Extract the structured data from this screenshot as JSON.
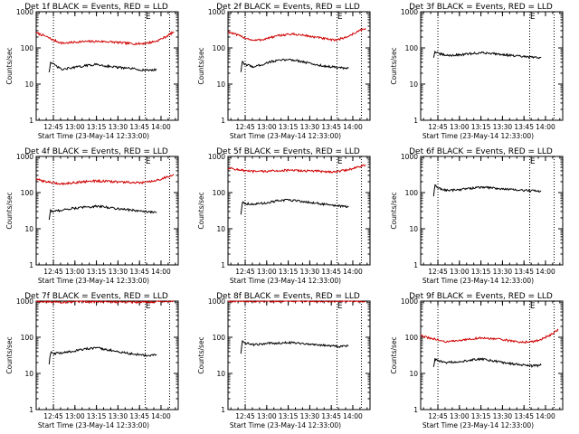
{
  "figure": {
    "background": "#ffffff",
    "colors": {
      "events": "#000000",
      "lld": "#d00000",
      "axes": "#000000"
    }
  },
  "chart_data": [
    {
      "type": "line",
      "title": "Det 1f BLACK = Events, RED = LLD",
      "xlabel": "Start Time (23-May-14 12:33:00)",
      "ylabel": "Counts/sec",
      "y_scale": "log",
      "ylim": [
        1,
        1000
      ],
      "y_ticks": [
        "1",
        "10",
        "100",
        "1000"
      ],
      "xlim": [
        "12:33",
        "14:12"
      ],
      "x_ticks": [
        "12:45",
        "13:00",
        "13:15",
        "13:30",
        "13:45",
        "14:00"
      ],
      "vlines": [
        "12:45",
        "13:49",
        "14:06"
      ],
      "markers": [
        {
          "text": "E",
          "x": "13:51"
        }
      ],
      "series": [
        {
          "color": "#d00000",
          "x": [
            "12:33",
            "12:39",
            "12:45",
            "12:51",
            "12:57",
            "13:03",
            "13:09",
            "13:15",
            "13:21",
            "13:27",
            "13:33",
            "13:39",
            "13:45",
            "13:51",
            "13:57",
            "14:03",
            "14:09"
          ],
          "y": [
            260,
            215,
            165,
            135,
            140,
            148,
            150,
            152,
            150,
            145,
            138,
            132,
            130,
            138,
            155,
            200,
            280
          ]
        },
        {
          "color": "#000000",
          "x": [
            "12:42",
            "12:43",
            "12:45",
            "12:51",
            "12:57",
            "13:03",
            "13:09",
            "13:15",
            "13:21",
            "13:27",
            "13:33",
            "13:39",
            "13:45",
            "13:51",
            "13:57"
          ],
          "y": [
            22,
            40,
            35,
            25,
            28,
            30,
            33,
            35,
            32,
            30,
            28,
            27,
            25,
            24,
            25
          ]
        }
      ]
    },
    {
      "type": "line",
      "title": "Det 2f BLACK = Events, RED = LLD",
      "xlabel": "Start Time (23-May-14 12:33:00)",
      "ylabel": "Counts/sec",
      "y_scale": "log",
      "ylim": [
        1,
        1000
      ],
      "y_ticks": [
        "1",
        "10",
        "100",
        "1000"
      ],
      "xlim": [
        "12:33",
        "14:12"
      ],
      "x_ticks": [
        "12:45",
        "13:00",
        "13:15",
        "13:30",
        "13:45",
        "14:00"
      ],
      "vlines": [
        "12:45",
        "13:49",
        "14:06"
      ],
      "markers": [
        {
          "text": "E",
          "x": "13:51"
        }
      ],
      "series": [
        {
          "color": "#d00000",
          "x": [
            "12:33",
            "12:39",
            "12:45",
            "12:51",
            "12:57",
            "13:03",
            "13:09",
            "13:15",
            "13:21",
            "13:27",
            "13:33",
            "13:39",
            "13:45",
            "13:51",
            "13:57",
            "14:03",
            "14:09"
          ],
          "y": [
            280,
            230,
            190,
            160,
            170,
            195,
            220,
            240,
            235,
            220,
            200,
            185,
            165,
            175,
            210,
            280,
            350
          ]
        },
        {
          "color": "#000000",
          "x": [
            "12:42",
            "12:43",
            "12:45",
            "12:51",
            "12:57",
            "13:03",
            "13:09",
            "13:15",
            "13:21",
            "13:27",
            "13:33",
            "13:39",
            "13:45",
            "13:51",
            "13:57"
          ],
          "y": [
            22,
            40,
            35,
            30,
            35,
            42,
            45,
            48,
            45,
            40,
            35,
            32,
            30,
            28,
            27
          ]
        }
      ]
    },
    {
      "type": "line",
      "title": "Det 3f BLACK = Events, RED = LLD",
      "xlabel": "Start Time (23-May-14 12:33:00)",
      "ylabel": "Counts/sec",
      "y_scale": "log",
      "ylim": [
        1,
        1000
      ],
      "y_ticks": [
        "1",
        "10",
        "100",
        "1000"
      ],
      "xlim": [
        "12:33",
        "14:12"
      ],
      "x_ticks": [
        "12:45",
        "13:00",
        "13:15",
        "13:30",
        "13:45",
        "14:00"
      ],
      "vlines": [
        "12:45",
        "13:49",
        "14:06"
      ],
      "markers": [
        {
          "text": "E",
          "x": "13:51"
        }
      ],
      "series": [
        {
          "color": "#000000",
          "x": [
            "12:42",
            "12:43",
            "12:45",
            "12:51",
            "12:57",
            "13:03",
            "13:09",
            "13:15",
            "13:21",
            "13:27",
            "13:33",
            "13:39",
            "13:45",
            "13:51",
            "13:57"
          ],
          "y": [
            55,
            80,
            70,
            62,
            63,
            66,
            70,
            73,
            72,
            68,
            64,
            60,
            57,
            55,
            54
          ]
        }
      ]
    },
    {
      "type": "line",
      "title": "Det 4f BLACK = Events, RED = LLD",
      "xlabel": "Start Time (23-May-14 12:33:00)",
      "ylabel": "Counts/sec",
      "y_scale": "log",
      "ylim": [
        1,
        1000
      ],
      "y_ticks": [
        "1",
        "10",
        "100",
        "1000"
      ],
      "xlim": [
        "12:33",
        "14:12"
      ],
      "x_ticks": [
        "12:45",
        "13:00",
        "13:15",
        "13:30",
        "13:45",
        "14:00"
      ],
      "vlines": [
        "12:45",
        "13:49",
        "14:06"
      ],
      "markers": [
        {
          "text": "E",
          "x": "13:51"
        }
      ],
      "series": [
        {
          "color": "#d00000",
          "x": [
            "12:33",
            "12:39",
            "12:45",
            "12:51",
            "12:57",
            "13:03",
            "13:09",
            "13:15",
            "13:21",
            "13:27",
            "13:33",
            "13:39",
            "13:45",
            "13:51",
            "13:57",
            "14:03",
            "14:09"
          ],
          "y": [
            230,
            205,
            185,
            175,
            185,
            195,
            205,
            210,
            205,
            200,
            195,
            190,
            185,
            195,
            215,
            260,
            320
          ]
        },
        {
          "color": "#000000",
          "x": [
            "12:42",
            "12:43",
            "12:45",
            "12:51",
            "12:57",
            "13:03",
            "13:09",
            "13:15",
            "13:21",
            "13:27",
            "13:33",
            "13:39",
            "13:45",
            "13:51",
            "13:57"
          ],
          "y": [
            18,
            32,
            30,
            33,
            36,
            38,
            40,
            42,
            40,
            37,
            35,
            33,
            31,
            29,
            28
          ]
        }
      ]
    },
    {
      "type": "line",
      "title": "Det 5f BLACK = Events, RED = LLD",
      "xlabel": "Start Time (23-May-14 12:33:00)",
      "ylabel": "Counts/sec",
      "y_scale": "log",
      "ylim": [
        1,
        1000
      ],
      "y_ticks": [
        "1",
        "10",
        "100",
        "1000"
      ],
      "xlim": [
        "12:33",
        "14:12"
      ],
      "x_ticks": [
        "12:45",
        "13:00",
        "13:15",
        "13:30",
        "13:45",
        "14:00"
      ],
      "vlines": [
        "12:45",
        "13:49",
        "14:06"
      ],
      "markers": [
        {
          "text": "E",
          "x": "13:51"
        }
      ],
      "series": [
        {
          "color": "#d00000",
          "x": [
            "12:33",
            "12:39",
            "12:45",
            "12:51",
            "12:57",
            "13:03",
            "13:09",
            "13:15",
            "13:21",
            "13:27",
            "13:33",
            "13:39",
            "13:45",
            "13:51",
            "13:57",
            "14:03",
            "14:09"
          ],
          "y": [
            480,
            440,
            400,
            380,
            385,
            395,
            405,
            410,
            405,
            400,
            395,
            385,
            375,
            390,
            430,
            500,
            580
          ]
        },
        {
          "color": "#000000",
          "x": [
            "12:42",
            "12:43",
            "12:45",
            "12:51",
            "12:57",
            "13:03",
            "13:09",
            "13:15",
            "13:21",
            "13:27",
            "13:33",
            "13:39",
            "13:45",
            "13:51",
            "13:57"
          ],
          "y": [
            25,
            55,
            50,
            48,
            50,
            55,
            60,
            62,
            60,
            55,
            52,
            48,
            45,
            42,
            40
          ]
        }
      ]
    },
    {
      "type": "line",
      "title": "Det 6f BLACK = Events, RED = LLD",
      "xlabel": "Start Time (23-May-14 12:33:00)",
      "ylabel": "Counts/sec",
      "y_scale": "log",
      "ylim": [
        1,
        1000
      ],
      "y_ticks": [
        "1",
        "10",
        "100",
        "1000"
      ],
      "xlim": [
        "12:33",
        "14:12"
      ],
      "x_ticks": [
        "12:45",
        "13:00",
        "13:15",
        "13:30",
        "13:45",
        "14:00"
      ],
      "vlines": [
        "12:45",
        "13:49",
        "14:06"
      ],
      "markers": [
        {
          "text": "E",
          "x": "13:51"
        }
      ],
      "series": [
        {
          "color": "#000000",
          "x": [
            "12:42",
            "12:43",
            "12:45",
            "12:51",
            "12:57",
            "13:03",
            "13:09",
            "13:15",
            "13:21",
            "13:27",
            "13:33",
            "13:39",
            "13:45",
            "13:51",
            "13:57"
          ],
          "y": [
            80,
            160,
            135,
            115,
            118,
            125,
            133,
            140,
            137,
            130,
            124,
            118,
            115,
            112,
            110
          ]
        }
      ]
    },
    {
      "type": "line",
      "title": "Det 7f BLACK = Events, RED = LLD",
      "xlabel": "Start Time (23-May-14 12:33:00)",
      "ylabel": "Counts/sec",
      "y_scale": "log",
      "ylim": [
        1,
        1000
      ],
      "y_ticks": [
        "1",
        "10",
        "100",
        "1000"
      ],
      "xlim": [
        "12:33",
        "14:12"
      ],
      "x_ticks": [
        "12:45",
        "13:00",
        "13:15",
        "13:30",
        "13:45",
        "14:00"
      ],
      "vlines": [
        "12:45",
        "13:49",
        "14:06"
      ],
      "markers": [
        {
          "text": "E",
          "x": "13:51"
        }
      ],
      "series": [
        {
          "color": "#d00000",
          "x": [
            "12:33",
            "12:39",
            "12:45",
            "12:51",
            "12:57",
            "13:03",
            "13:09",
            "13:15",
            "13:21",
            "13:27",
            "13:33",
            "13:39",
            "13:45",
            "13:51",
            "13:57",
            "14:03",
            "14:09"
          ],
          "y": [
            1000,
            980,
            950,
            930,
            940,
            950,
            960,
            965,
            960,
            955,
            950,
            945,
            940,
            950,
            970,
            1000,
            1000
          ]
        },
        {
          "color": "#000000",
          "x": [
            "12:42",
            "12:43",
            "12:45",
            "12:51",
            "12:57",
            "13:03",
            "13:09",
            "13:15",
            "13:21",
            "13:27",
            "13:33",
            "13:39",
            "13:45",
            "13:51",
            "13:57"
          ],
          "y": [
            18,
            38,
            35,
            37,
            40,
            45,
            48,
            50,
            47,
            42,
            38,
            35,
            33,
            31,
            33
          ]
        }
      ]
    },
    {
      "type": "line",
      "title": "Det 8f BLACK = Events, RED = LLD",
      "xlabel": "Start Time (23-May-14 12:33:00)",
      "ylabel": "Counts/sec",
      "y_scale": "log",
      "ylim": [
        1,
        1000
      ],
      "y_ticks": [
        "1",
        "10",
        "100",
        "1000"
      ],
      "xlim": [
        "12:33",
        "14:12"
      ],
      "x_ticks": [
        "12:45",
        "13:00",
        "13:15",
        "13:30",
        "13:45",
        "14:00"
      ],
      "vlines": [
        "12:45",
        "13:49",
        "14:06"
      ],
      "markers": [
        {
          "text": "E",
          "x": "13:51"
        }
      ],
      "series": [
        {
          "color": "#d00000",
          "x": [
            "12:33",
            "12:39",
            "12:45",
            "12:51",
            "12:57",
            "13:03",
            "13:09",
            "13:15",
            "13:21",
            "13:27",
            "13:33",
            "13:39",
            "13:45",
            "13:51",
            "13:57",
            "14:03",
            "14:09"
          ],
          "y": [
            1000,
            1000,
            1000,
            990,
            995,
            1000,
            1000,
            1000,
            1000,
            1000,
            1000,
            995,
            990,
            1000,
            1000,
            1000,
            1000
          ]
        },
        {
          "color": "#000000",
          "x": [
            "12:42",
            "12:43",
            "12:45",
            "12:51",
            "12:57",
            "13:03",
            "13:09",
            "13:15",
            "13:21",
            "13:27",
            "13:33",
            "13:39",
            "13:45",
            "13:51",
            "13:57"
          ],
          "y": [
            35,
            80,
            70,
            62,
            65,
            68,
            70,
            72,
            70,
            66,
            63,
            60,
            58,
            56,
            58
          ]
        }
      ]
    },
    {
      "type": "line",
      "title": "Det 9f BLACK = Events, RED = LLD",
      "xlabel": "Start Time (23-May-14 12:33:00)",
      "ylabel": "Counts/sec",
      "y_scale": "log",
      "ylim": [
        1,
        1000
      ],
      "y_ticks": [
        "1",
        "10",
        "100",
        "1000"
      ],
      "xlim": [
        "12:33",
        "14:12"
      ],
      "x_ticks": [
        "12:45",
        "13:00",
        "13:15",
        "13:30",
        "13:45",
        "14:00"
      ],
      "vlines": [
        "12:45",
        "13:49",
        "14:06"
      ],
      "markers": [
        {
          "text": "E",
          "x": "13:51"
        }
      ],
      "series": [
        {
          "color": "#d00000",
          "x": [
            "12:33",
            "12:39",
            "12:45",
            "12:51",
            "12:57",
            "13:03",
            "13:09",
            "13:15",
            "13:21",
            "13:27",
            "13:33",
            "13:39",
            "13:45",
            "13:51",
            "13:57",
            "14:03",
            "14:09"
          ],
          "y": [
            110,
            95,
            85,
            75,
            78,
            85,
            92,
            95,
            93,
            88,
            82,
            77,
            73,
            75,
            88,
            115,
            160
          ]
        },
        {
          "color": "#000000",
          "x": [
            "12:42",
            "12:43",
            "12:45",
            "12:51",
            "12:57",
            "13:03",
            "13:09",
            "13:15",
            "13:21",
            "13:27",
            "13:33",
            "13:39",
            "13:45",
            "13:51",
            "13:57"
          ],
          "y": [
            15,
            25,
            22,
            20,
            21,
            22,
            24,
            25,
            23,
            21,
            19,
            18,
            17,
            16,
            17
          ]
        }
      ]
    }
  ]
}
